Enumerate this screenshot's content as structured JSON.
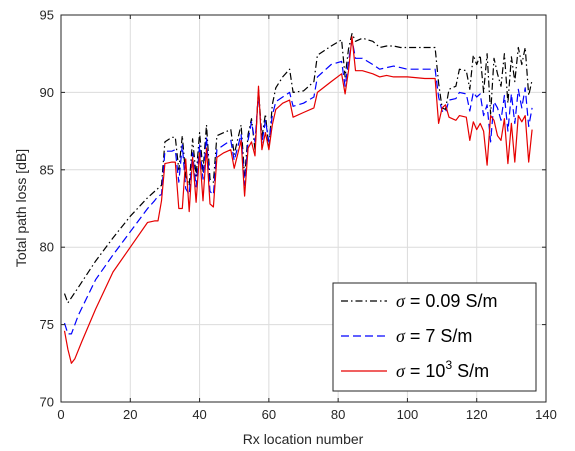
{
  "chart_data": {
    "type": "line",
    "title": "",
    "xlabel": "Rx location number",
    "ylabel": "Total path loss [dB]",
    "xlim": [
      0,
      140
    ],
    "ylim": [
      70,
      95
    ],
    "xticks": [
      0,
      20,
      40,
      60,
      80,
      100,
      120,
      140
    ],
    "yticks": [
      70,
      75,
      80,
      85,
      90,
      95
    ],
    "grid": true,
    "legend_position": "bottom-right",
    "series": [
      {
        "name": "σ = 0.09 S/m",
        "legend_symbol": "σ",
        "legend_text": " = 0.09 S/m",
        "color": "#000000",
        "style": "dashdot",
        "points": [
          [
            1,
            77.0
          ],
          [
            2,
            76.4
          ],
          [
            5,
            77.4
          ],
          [
            10,
            79.1
          ],
          [
            15,
            80.6
          ],
          [
            20,
            82.0
          ],
          [
            25,
            83.2
          ],
          [
            27,
            83.6
          ],
          [
            28,
            83.8
          ],
          [
            29,
            84.0
          ],
          [
            30,
            86.8
          ],
          [
            32,
            87.1
          ],
          [
            33,
            87.1
          ],
          [
            34,
            85.0
          ],
          [
            35,
            87.2
          ],
          [
            36,
            84.6
          ],
          [
            37,
            84.0
          ],
          [
            38,
            87.0
          ],
          [
            39,
            84.6
          ],
          [
            40,
            87.4
          ],
          [
            41,
            84.9
          ],
          [
            42,
            87.9
          ],
          [
            43,
            84.4
          ],
          [
            44,
            84.2
          ],
          [
            45,
            87.2
          ],
          [
            47,
            87.4
          ],
          [
            49,
            87.6
          ],
          [
            50,
            86.0
          ],
          [
            52,
            87.9
          ],
          [
            53,
            84.6
          ],
          [
            54,
            87.3
          ],
          [
            55,
            88.3
          ],
          [
            56,
            86.3
          ],
          [
            57,
            90.2
          ],
          [
            58,
            87.1
          ],
          [
            59,
            88.6
          ],
          [
            60,
            86.4
          ],
          [
            61,
            89.2
          ],
          [
            62,
            90.3
          ],
          [
            64,
            91.0
          ],
          [
            66,
            91.5
          ],
          [
            67,
            90.0
          ],
          [
            70,
            90.1
          ],
          [
            73,
            90.7
          ],
          [
            74,
            92.4
          ],
          [
            78,
            93.0
          ],
          [
            81,
            93.4
          ],
          [
            82,
            91.0
          ],
          [
            83,
            92.8
          ],
          [
            84,
            93.8
          ],
          [
            85,
            93.3
          ],
          [
            87,
            93.5
          ],
          [
            90,
            93.3
          ],
          [
            92,
            92.9
          ],
          [
            94,
            93.0
          ],
          [
            96,
            93.0
          ],
          [
            98,
            92.9
          ],
          [
            100,
            92.9
          ],
          [
            105,
            92.9
          ],
          [
            108,
            92.9
          ],
          [
            109,
            90.6
          ],
          [
            110,
            89.0
          ],
          [
            111,
            88.9
          ],
          [
            112,
            90.2
          ],
          [
            114,
            90.4
          ],
          [
            115,
            91.5
          ],
          [
            117,
            91.4
          ],
          [
            118,
            90.2
          ],
          [
            119,
            92.4
          ],
          [
            120,
            91.8
          ],
          [
            121,
            92.4
          ],
          [
            122,
            90.0
          ],
          [
            123,
            92.5
          ],
          [
            124,
            88.6
          ],
          [
            125,
            92.2
          ],
          [
            126,
            91.2
          ],
          [
            127,
            90.4
          ],
          [
            128,
            92.5
          ],
          [
            129,
            89.3
          ],
          [
            130,
            92.3
          ],
          [
            131,
            90.7
          ],
          [
            132,
            92.9
          ],
          [
            133,
            91.8
          ],
          [
            134,
            92.9
          ],
          [
            135,
            89.8
          ],
          [
            136,
            90.8
          ]
        ]
      },
      {
        "name": "σ = 7 S/m",
        "legend_symbol": "σ",
        "legend_text": " = 7 S/m",
        "color": "#0000ff",
        "style": "dashed",
        "points": [
          [
            1,
            75.1
          ],
          [
            2,
            74.4
          ],
          [
            3,
            74.4
          ],
          [
            5,
            75.6
          ],
          [
            10,
            77.9
          ],
          [
            15,
            79.5
          ],
          [
            20,
            81.0
          ],
          [
            25,
            82.5
          ],
          [
            27,
            83.0
          ],
          [
            28,
            83.3
          ],
          [
            29,
            83.4
          ],
          [
            30,
            86.2
          ],
          [
            32,
            86.2
          ],
          [
            33,
            86.3
          ],
          [
            34,
            84.2
          ],
          [
            35,
            86.6
          ],
          [
            36,
            83.8
          ],
          [
            37,
            83.4
          ],
          [
            38,
            86.1
          ],
          [
            39,
            83.9
          ],
          [
            40,
            86.6
          ],
          [
            41,
            84.4
          ],
          [
            42,
            87.1
          ],
          [
            43,
            83.6
          ],
          [
            44,
            83.4
          ],
          [
            45,
            86.3
          ],
          [
            47,
            86.6
          ],
          [
            49,
            86.9
          ],
          [
            50,
            85.6
          ],
          [
            52,
            87.3
          ],
          [
            53,
            84.0
          ],
          [
            54,
            86.9
          ],
          [
            55,
            88.1
          ],
          [
            56,
            86.8
          ],
          [
            57,
            90.0
          ],
          [
            58,
            86.7
          ],
          [
            59,
            88.2
          ],
          [
            60,
            86.8
          ],
          [
            61,
            88.5
          ],
          [
            62,
            89.4
          ],
          [
            64,
            89.7
          ],
          [
            66,
            90.0
          ],
          [
            67,
            89.1
          ],
          [
            70,
            89.3
          ],
          [
            73,
            89.7
          ],
          [
            74,
            91.0
          ],
          [
            78,
            91.8
          ],
          [
            81,
            92.0
          ],
          [
            82,
            90.4
          ],
          [
            83,
            92.0
          ],
          [
            84,
            93.4
          ],
          [
            85,
            92.2
          ],
          [
            87,
            92.2
          ],
          [
            90,
            91.8
          ],
          [
            92,
            91.5
          ],
          [
            94,
            91.6
          ],
          [
            96,
            91.7
          ],
          [
            98,
            91.6
          ],
          [
            100,
            91.5
          ],
          [
            105,
            91.5
          ],
          [
            108,
            91.5
          ],
          [
            109,
            89.7
          ],
          [
            110,
            88.8
          ],
          [
            111,
            88.7
          ],
          [
            112,
            89.5
          ],
          [
            114,
            89.6
          ],
          [
            115,
            90.0
          ],
          [
            117,
            89.9
          ],
          [
            118,
            88.8
          ],
          [
            119,
            90.0
          ],
          [
            120,
            89.7
          ],
          [
            121,
            89.9
          ],
          [
            122,
            88.5
          ],
          [
            123,
            89.2
          ],
          [
            124,
            86.8
          ],
          [
            125,
            89.4
          ],
          [
            126,
            89.0
          ],
          [
            127,
            88.2
          ],
          [
            128,
            89.8
          ],
          [
            129,
            87.5
          ],
          [
            130,
            89.9
          ],
          [
            131,
            88.0
          ],
          [
            132,
            90.2
          ],
          [
            133,
            89.0
          ],
          [
            134,
            90.3
          ],
          [
            135,
            87.8
          ],
          [
            136,
            89.0
          ]
        ]
      },
      {
        "name": "σ = 10³ S/m",
        "legend_symbol": "σ",
        "legend_text": " = 10",
        "legend_sup": "3",
        "legend_text_after": " S/m",
        "color": "#e60000",
        "style": "solid",
        "points": [
          [
            1,
            74.6
          ],
          [
            2,
            73.4
          ],
          [
            3,
            72.5
          ],
          [
            4,
            72.8
          ],
          [
            6,
            73.9
          ],
          [
            10,
            76.0
          ],
          [
            15,
            78.4
          ],
          [
            20,
            80.0
          ],
          [
            25,
            81.6
          ],
          [
            27,
            81.7
          ],
          [
            28,
            81.7
          ],
          [
            29,
            83.0
          ],
          [
            30,
            85.4
          ],
          [
            32,
            85.5
          ],
          [
            33,
            85.5
          ],
          [
            34,
            82.5
          ],
          [
            35,
            82.5
          ],
          [
            36,
            85.7
          ],
          [
            37,
            82.3
          ],
          [
            38,
            85.8
          ],
          [
            39,
            82.9
          ],
          [
            40,
            86.1
          ],
          [
            41,
            83.0
          ],
          [
            42,
            86.4
          ],
          [
            43,
            82.8
          ],
          [
            44,
            82.6
          ],
          [
            45,
            85.8
          ],
          [
            47,
            86.1
          ],
          [
            49,
            86.3
          ],
          [
            50,
            85.1
          ],
          [
            52,
            86.9
          ],
          [
            53,
            83.3
          ],
          [
            54,
            86.4
          ],
          [
            55,
            86.8
          ],
          [
            56,
            85.9
          ],
          [
            57,
            90.4
          ],
          [
            58,
            86.3
          ],
          [
            59,
            87.4
          ],
          [
            60,
            86.3
          ],
          [
            61,
            87.9
          ],
          [
            62,
            88.9
          ],
          [
            64,
            89.3
          ],
          [
            66,
            89.5
          ],
          [
            67,
            88.4
          ],
          [
            70,
            88.7
          ],
          [
            73,
            89.0
          ],
          [
            74,
            90.0
          ],
          [
            78,
            90.7
          ],
          [
            81,
            91.2
          ],
          [
            82,
            89.9
          ],
          [
            83,
            91.4
          ],
          [
            84,
            93.6
          ],
          [
            85,
            91.4
          ],
          [
            87,
            91.4
          ],
          [
            90,
            91.2
          ],
          [
            92,
            91.0
          ],
          [
            94,
            91.1
          ],
          [
            96,
            91.0
          ],
          [
            98,
            91.0
          ],
          [
            100,
            91.0
          ],
          [
            105,
            90.9
          ],
          [
            108,
            90.9
          ],
          [
            109,
            88.0
          ],
          [
            110,
            89.0
          ],
          [
            111,
            89.2
          ],
          [
            112,
            88.4
          ],
          [
            114,
            88.2
          ],
          [
            115,
            88.5
          ],
          [
            117,
            88.4
          ],
          [
            118,
            86.9
          ],
          [
            119,
            88.1
          ],
          [
            120,
            87.6
          ],
          [
            121,
            88.0
          ],
          [
            122,
            87.5
          ],
          [
            123,
            85.3
          ],
          [
            124,
            88.5
          ],
          [
            125,
            88.2
          ],
          [
            126,
            87.2
          ],
          [
            127,
            86.9
          ],
          [
            128,
            88.3
          ],
          [
            129,
            85.4
          ],
          [
            130,
            88.0
          ],
          [
            131,
            85.5
          ],
          [
            132,
            88.5
          ],
          [
            133,
            88.1
          ],
          [
            134,
            88.5
          ],
          [
            135,
            85.5
          ],
          [
            136,
            87.6
          ]
        ]
      }
    ]
  }
}
